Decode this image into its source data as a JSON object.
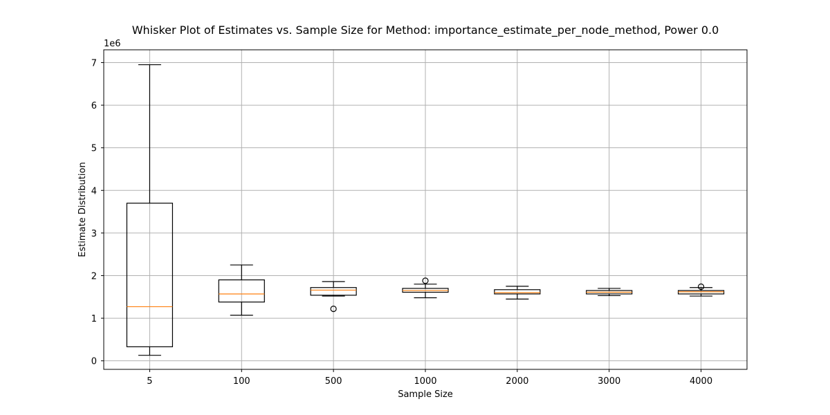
{
  "chart_data": {
    "type": "box",
    "title": "Whisker Plot of Estimates vs. Sample Size for Method: importance_estimate_per_node_method, Power 0.0",
    "xlabel": "Sample Size",
    "ylabel": "Estimate Distribution",
    "y_offset_label": "1e6",
    "y_scale": 1000000,
    "ylim": [
      -200000,
      7300000
    ],
    "yticks": [
      0,
      1,
      2,
      3,
      4,
      5,
      6,
      7
    ],
    "grid": true,
    "colors": {
      "box": "#000000",
      "median": "#ff7f0e",
      "grid": "#b0b0b0"
    },
    "categories": [
      "5",
      "100",
      "500",
      "1000",
      "2000",
      "3000",
      "4000"
    ],
    "boxes": [
      {
        "whislo": 130000,
        "q1": 330000,
        "med": 1270000,
        "q3": 3700000,
        "whishi": 6950000,
        "fliers": []
      },
      {
        "whislo": 1070000,
        "q1": 1380000,
        "med": 1570000,
        "q3": 1900000,
        "whishi": 2250000,
        "fliers": []
      },
      {
        "whislo": 1520000,
        "q1": 1540000,
        "med": 1660000,
        "q3": 1720000,
        "whishi": 1860000,
        "fliers": [
          1220000
        ]
      },
      {
        "whislo": 1480000,
        "q1": 1610000,
        "med": 1650000,
        "q3": 1700000,
        "whishi": 1800000,
        "fliers": [
          1880000
        ]
      },
      {
        "whislo": 1450000,
        "q1": 1570000,
        "med": 1600000,
        "q3": 1670000,
        "whishi": 1750000,
        "fliers": []
      },
      {
        "whislo": 1530000,
        "q1": 1570000,
        "med": 1610000,
        "q3": 1650000,
        "whishi": 1700000,
        "fliers": []
      },
      {
        "whislo": 1520000,
        "q1": 1570000,
        "med": 1620000,
        "q3": 1650000,
        "whishi": 1720000,
        "fliers": [
          1740000
        ]
      }
    ]
  }
}
